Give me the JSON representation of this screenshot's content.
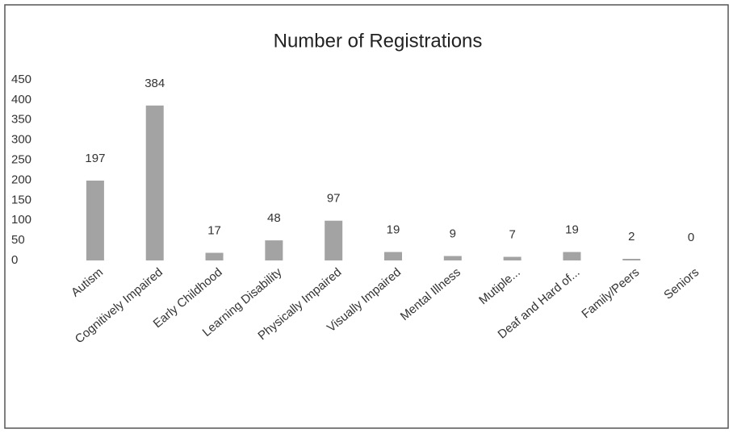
{
  "chart_data": {
    "type": "bar",
    "title": "Number of Registrations",
    "categories": [
      "Autism",
      "Cognitively Impaired",
      "Early Childhood",
      "Learning Disability",
      "Physically Impaired",
      "Visually Impaired",
      "Mental Illness",
      "Mutiple...",
      "Deaf and Hard of...",
      "Family/Peers",
      "Seniors"
    ],
    "values": [
      197,
      384,
      17,
      48,
      97,
      19,
      9,
      7,
      19,
      2,
      0
    ],
    "color": "#a3a3a3",
    "ylim": [
      0,
      450
    ],
    "yticks": [
      0,
      50,
      100,
      150,
      200,
      250,
      300,
      350,
      400,
      450
    ],
    "grid": false
  }
}
